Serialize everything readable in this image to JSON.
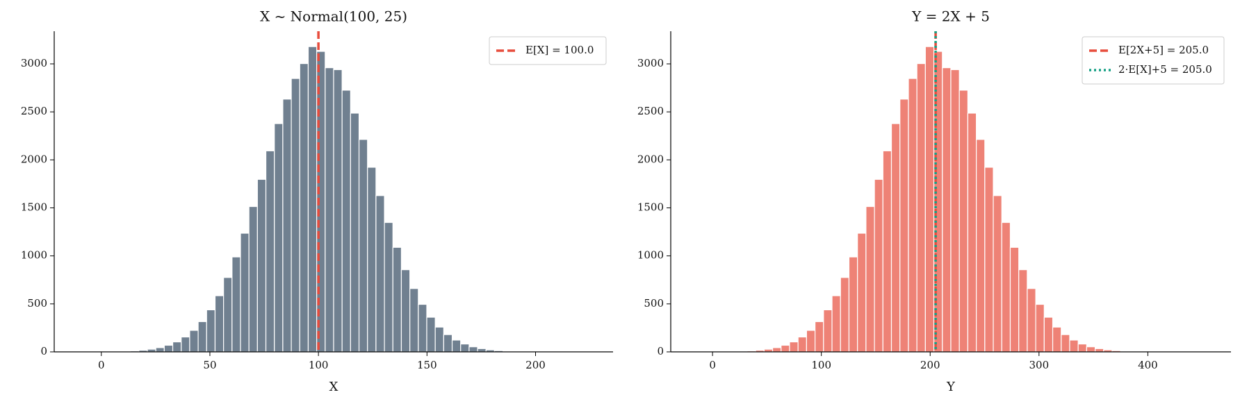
{
  "chart_data": [
    {
      "type": "histogram",
      "title": "X ~ Normal(100, 25)",
      "xlabel": "X",
      "color": "#708090",
      "edgecolor": "#ffffff",
      "bins": [
        -10,
        -6.1,
        -2.2,
        1.7,
        5.6,
        9.5,
        13.4,
        17.3,
        21.2,
        25.1,
        29,
        32.9,
        36.8,
        40.7,
        44.6,
        48.5,
        52.4,
        56.3,
        60.2,
        64.1,
        68,
        71.9,
        75.8,
        79.7,
        83.6,
        87.5,
        91.4,
        95.3,
        99.2,
        103.1,
        107,
        110.9,
        114.8,
        118.7,
        122.6,
        126.5,
        130.4,
        134.3,
        138.2,
        142.1,
        146,
        149.9,
        153.8,
        157.7,
        161.6,
        165.5,
        169.4,
        173.3,
        177.2,
        181.1,
        185,
        188.9,
        192.8,
        196.7,
        200.6,
        204.5,
        208.4,
        212.3,
        216.2,
        220.1,
        224
      ],
      "values": [
        0,
        1,
        1,
        2,
        3,
        6,
        10,
        17,
        28,
        44,
        69,
        104,
        155,
        224,
        315,
        438,
        585,
        775,
        989,
        1236,
        1514,
        1797,
        2094,
        2378,
        2633,
        2848,
        3003,
        3180,
        3130,
        2960,
        2940,
        2726,
        2487,
        2213,
        1923,
        1628,
        1348,
        1089,
        856,
        660,
        495,
        361,
        258,
        180,
        123,
        82,
        53,
        34,
        21,
        13,
        7,
        4,
        2,
        1,
        1,
        0,
        0,
        0,
        0,
        1
      ],
      "xlim": [
        -21.7,
        235.7
      ],
      "xticks": [
        0,
        50,
        100,
        150,
        200
      ],
      "ylim": [
        0,
        3340
      ],
      "yticks": [
        0,
        500,
        1000,
        1500,
        2000,
        2500,
        3000
      ],
      "vlines": [
        {
          "x": 100,
          "label": "E[X] = 100.0",
          "color": "#e74c3c",
          "style": "dashed"
        }
      ],
      "legend": "upper right"
    },
    {
      "type": "histogram",
      "title": "Y = 2X + 5",
      "xlabel": "Y",
      "color": "#ee8276",
      "edgecolor": "#ffffff",
      "bins": [
        -15,
        -7.2,
        0.6,
        8.4,
        16.2,
        24,
        31.8,
        39.6,
        47.4,
        55.2,
        63,
        70.8,
        78.6,
        86.4,
        94.2,
        102,
        109.8,
        117.6,
        125.4,
        133.2,
        141,
        148.8,
        156.6,
        164.4,
        172.2,
        180,
        187.8,
        195.6,
        203.4,
        211.2,
        219,
        226.8,
        234.6,
        242.4,
        250.2,
        258,
        265.8,
        273.6,
        281.4,
        289.2,
        297,
        304.8,
        312.6,
        320.4,
        328.2,
        336,
        343.8,
        351.6,
        359.4,
        367.2,
        375,
        382.8,
        390.6,
        398.4,
        406.2,
        414,
        421.8,
        429.6,
        437.4,
        445.2,
        453
      ],
      "values": [
        0,
        1,
        1,
        2,
        3,
        6,
        10,
        17,
        28,
        44,
        69,
        104,
        155,
        224,
        315,
        438,
        585,
        775,
        989,
        1236,
        1514,
        1797,
        2094,
        2378,
        2633,
        2848,
        3003,
        3180,
        3130,
        2960,
        2940,
        2726,
        2487,
        2213,
        1923,
        1628,
        1348,
        1089,
        856,
        660,
        495,
        361,
        258,
        180,
        123,
        82,
        53,
        34,
        21,
        13,
        7,
        4,
        2,
        1,
        1,
        0,
        0,
        0,
        0,
        1
      ],
      "xlim": [
        -38.4,
        476.4
      ],
      "xticks": [
        0,
        100,
        200,
        300,
        400
      ],
      "ylim": [
        0,
        3340
      ],
      "yticks": [
        0,
        500,
        1000,
        1500,
        2000,
        2500,
        3000
      ],
      "vlines": [
        {
          "x": 205,
          "label": "E[2X+5] = 205.0",
          "color": "#e74c3c",
          "style": "dashed"
        },
        {
          "x": 205,
          "label": "2·E[X]+5 = 205.0",
          "color": "#16a085",
          "style": "dotted"
        }
      ],
      "legend": "upper right"
    }
  ]
}
